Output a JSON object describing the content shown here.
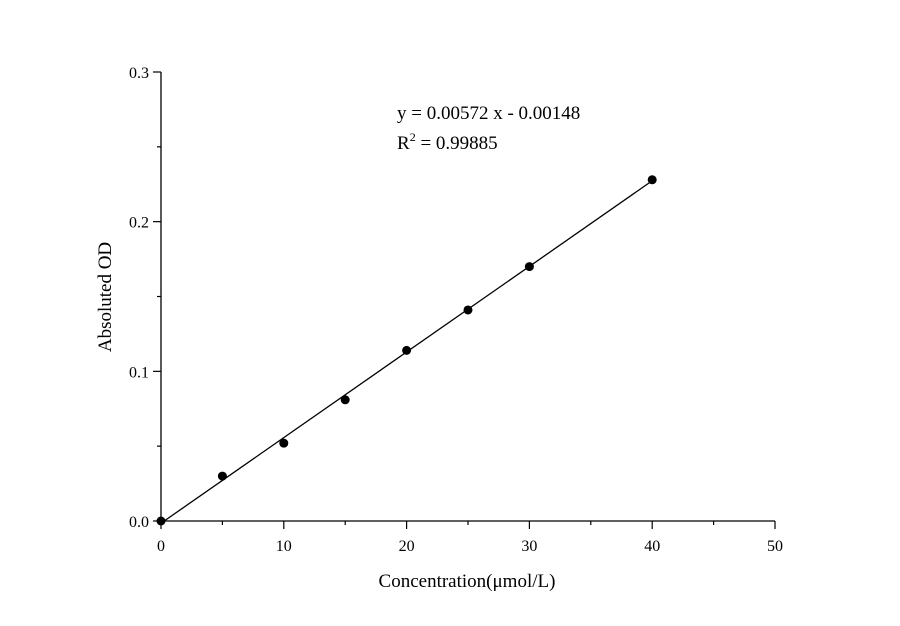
{
  "chart_data": {
    "type": "scatter",
    "title": "",
    "xlabel": "Concentration(μmol/L)",
    "ylabel": "Absoluted OD",
    "xlim": [
      0,
      50
    ],
    "ylim": [
      0,
      0.3
    ],
    "x_major_ticks": [
      0,
      10,
      20,
      30,
      40,
      50
    ],
    "y_major_ticks": [
      0.0,
      0.1,
      0.2,
      0.3
    ],
    "x_tick_labels": [
      "0",
      "10",
      "20",
      "30",
      "40",
      "50"
    ],
    "y_tick_labels": [
      "0.0",
      "0.1",
      "0.2",
      "0.3"
    ],
    "x_minor_step": 5,
    "y_minor_step": 0.05,
    "grid": false,
    "legend": "none",
    "marker_color": "#000000",
    "line_color": "#000000",
    "series": [
      {
        "x": [
          0,
          5,
          10,
          15,
          20,
          25,
          30,
          40
        ],
        "y": [
          0.0,
          0.03,
          0.052,
          0.081,
          0.114,
          0.141,
          0.17,
          0.228
        ]
      }
    ],
    "fit": {
      "slope": 0.00572,
      "intercept": -0.00148,
      "x_range": [
        0,
        40
      ]
    },
    "annotations": {
      "equation": "y = 0.00572 x - 0.00148",
      "r2_prefix": "R",
      "r2_exponent": "2",
      "r2_suffix": " = 0.99885"
    }
  }
}
